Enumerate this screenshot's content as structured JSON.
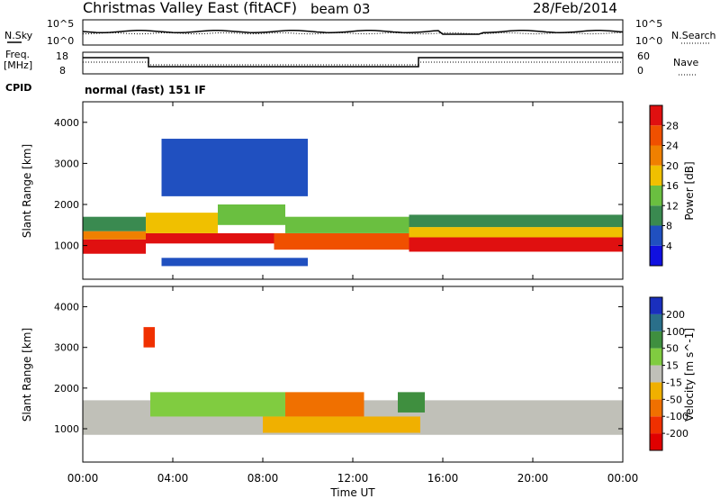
{
  "header": {
    "title": "Christmas Valley East (fitACF)",
    "beam": "beam 03",
    "date": "28/Feb/2014"
  },
  "panels": {
    "noise": {
      "left_label": "N.Sky",
      "right_label": "N.Search",
      "ticks": [
        "10^5",
        "10^0"
      ]
    },
    "freq": {
      "left_label_line1": "Freq.",
      "left_label_line2": "[MHz]",
      "left_ticks": [
        "18",
        "8"
      ],
      "right_label": "Nave",
      "right_ticks": [
        "60",
        "0"
      ]
    },
    "cpid": {
      "label": "CPID",
      "value": "normal (fast) 151 IF"
    }
  },
  "xaxis": {
    "label": "Time UT",
    "ticks": [
      "00:00",
      "04:00",
      "08:00",
      "12:00",
      "16:00",
      "20:00",
      "00:00"
    ]
  },
  "colors": {
    "power": [
      "#1010e0",
      "#2050c0",
      "#3a8a50",
      "#6abf40",
      "#f0c000",
      "#f08000",
      "#f05000",
      "#e01010"
    ],
    "velocity": [
      "#1a2fbd",
      "#2a6f8a",
      "#3f8f3f",
      "#80cc40",
      "#c0c0b8",
      "#f0b000",
      "#f07000",
      "#f03000",
      "#e00000"
    ]
  },
  "chart_data": [
    {
      "type": "heatmap",
      "name": "power",
      "ylabel": "Slant Range [km]",
      "xlabel": "",
      "ylim": [
        180,
        4500
      ],
      "yticks": [
        1000,
        2000,
        3000,
        4000
      ],
      "colorbar_label": "Power [dB]",
      "colorbar_ticks": [
        "28",
        "24",
        "20",
        "16",
        "12",
        "8",
        "4"
      ],
      "bands": [
        {
          "t0": 0.0,
          "t1": 2.8,
          "r0": 800,
          "r1": 1150,
          "v": 28
        },
        {
          "t0": 0.0,
          "t1": 2.8,
          "r0": 1150,
          "r1": 1350,
          "v": 20
        },
        {
          "t0": 0.0,
          "t1": 2.8,
          "r0": 1350,
          "r1": 1700,
          "v": 8
        },
        {
          "t0": 2.8,
          "t1": 8.5,
          "r0": 1050,
          "r1": 1300,
          "v": 28
        },
        {
          "t0": 2.8,
          "t1": 6.0,
          "r0": 1300,
          "r1": 1800,
          "v": 16
        },
        {
          "t0": 6.0,
          "t1": 9.0,
          "r0": 1500,
          "r1": 2000,
          "v": 12
        },
        {
          "t0": 8.5,
          "t1": 14.5,
          "r0": 900,
          "r1": 1300,
          "v": 24
        },
        {
          "t0": 9.0,
          "t1": 14.5,
          "r0": 1300,
          "r1": 1700,
          "v": 14
        },
        {
          "t0": 14.5,
          "t1": 24.0,
          "r0": 850,
          "r1": 1200,
          "v": 28
        },
        {
          "t0": 14.5,
          "t1": 24.0,
          "r0": 1200,
          "r1": 1450,
          "v": 18
        },
        {
          "t0": 14.5,
          "t1": 24.0,
          "r0": 1450,
          "r1": 1750,
          "v": 8
        },
        {
          "t0": 3.5,
          "t1": 10.0,
          "r0": 2200,
          "r1": 3600,
          "v": 6
        },
        {
          "t0": 3.5,
          "t1": 10.0,
          "r0": 500,
          "r1": 700,
          "v": 6
        }
      ]
    },
    {
      "type": "heatmap",
      "name": "velocity",
      "ylabel": "Slant Range [km]",
      "xlabel": "Time UT",
      "ylim": [
        180,
        4500
      ],
      "yticks": [
        1000,
        2000,
        3000,
        4000
      ],
      "colorbar_label": "Velocity [m s^-1]",
      "colorbar_ticks": [
        "200",
        "100",
        "50",
        "15",
        "-15",
        "-50",
        "-100",
        "-200"
      ],
      "bands": [
        {
          "t0": 0.0,
          "t1": 24.0,
          "r0": 850,
          "r1": 1700,
          "v": 0
        },
        {
          "t0": 3.0,
          "t1": 9.0,
          "r0": 1300,
          "r1": 1900,
          "v": 40
        },
        {
          "t0": 9.0,
          "t1": 12.5,
          "r0": 1300,
          "r1": 1900,
          "v": -80
        },
        {
          "t0": 8.0,
          "t1": 15.0,
          "r0": 900,
          "r1": 1300,
          "v": -40
        },
        {
          "t0": 14.0,
          "t1": 15.2,
          "r0": 1400,
          "r1": 1900,
          "v": 60
        },
        {
          "t0": 2.7,
          "t1": 3.2,
          "r0": 3000,
          "r1": 3500,
          "v": -150
        }
      ]
    }
  ]
}
